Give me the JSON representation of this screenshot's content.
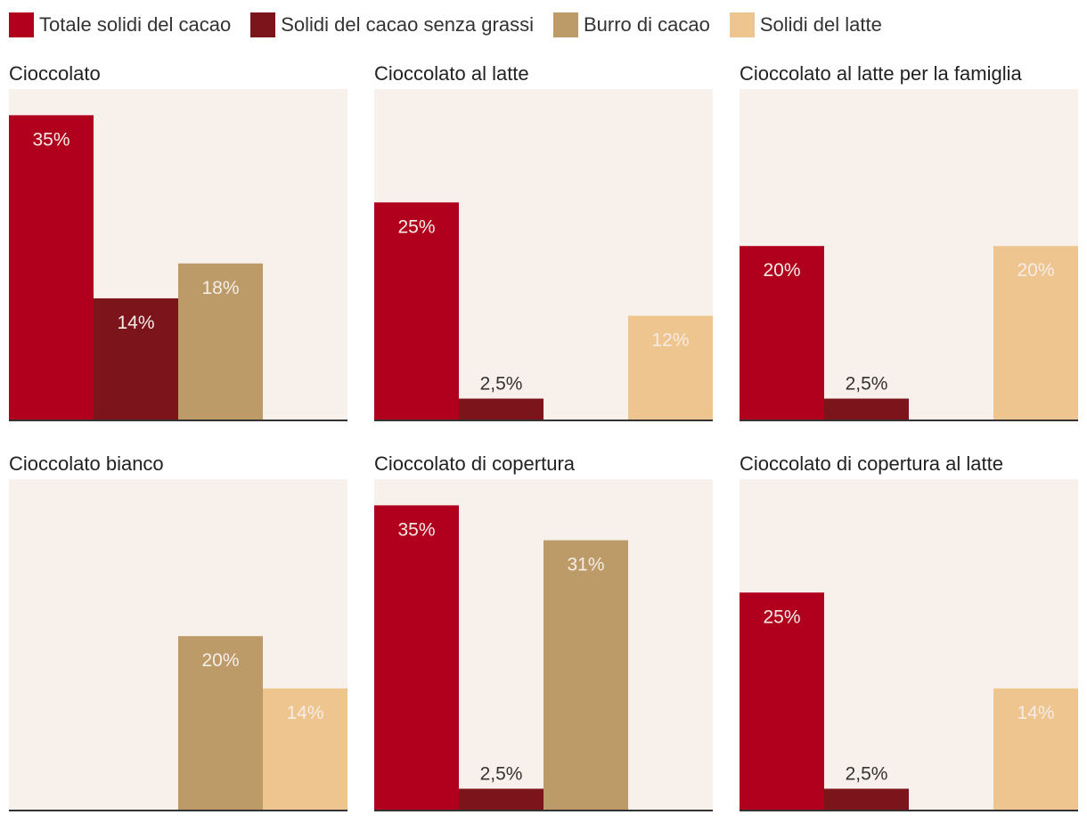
{
  "colors": {
    "background": "#f8f0ea",
    "axis": "#333333",
    "label_inside": "#f5ece6",
    "label_outside": "#333333"
  },
  "legend": [
    {
      "name": "Totale solidi del cacao",
      "color": "#b0001e"
    },
    {
      "name": "Solidi del cacao senza grassi",
      "color": "#7b141b"
    },
    {
      "name": "Burro di cacao",
      "color": "#bc9b69"
    },
    {
      "name": "Solidi del latte",
      "color": "#efc58f"
    }
  ],
  "chart_data": [
    {
      "type": "bar",
      "title": "Cioccolato",
      "categories": [
        "Totale solidi del cacao",
        "Solidi del cacao senza grassi",
        "Burro di cacao",
        "Solidi del latte"
      ],
      "values": [
        35,
        14,
        18,
        null
      ],
      "labels": [
        "35%",
        "14%",
        "18%",
        ""
      ],
      "ylim": [
        0,
        38
      ]
    },
    {
      "type": "bar",
      "title": "Cioccolato al latte",
      "categories": [
        "Totale solidi del cacao",
        "Solidi del cacao senza grassi",
        "Burro di cacao",
        "Solidi del latte"
      ],
      "values": [
        25,
        2.5,
        null,
        12
      ],
      "labels": [
        "25%",
        "2,5%",
        "",
        "12%"
      ],
      "ylim": [
        0,
        38
      ]
    },
    {
      "type": "bar",
      "title": "Cioccolato al latte per la famiglia",
      "categories": [
        "Totale solidi del cacao",
        "Solidi del cacao senza grassi",
        "Burro di cacao",
        "Solidi del latte"
      ],
      "values": [
        20,
        2.5,
        null,
        20
      ],
      "labels": [
        "20%",
        "2,5%",
        "",
        "20%"
      ],
      "ylim": [
        0,
        38
      ]
    },
    {
      "type": "bar",
      "title": "Cioccolato bianco",
      "categories": [
        "Totale solidi del cacao",
        "Solidi del cacao senza grassi",
        "Burro di cacao",
        "Solidi del latte"
      ],
      "values": [
        null,
        null,
        20,
        14
      ],
      "labels": [
        "",
        "",
        "20%",
        "14%"
      ],
      "ylim": [
        0,
        38
      ]
    },
    {
      "type": "bar",
      "title": "Cioccolato di copertura",
      "categories": [
        "Totale solidi del cacao",
        "Solidi del cacao senza grassi",
        "Burro di cacao",
        "Solidi del latte"
      ],
      "values": [
        35,
        2.5,
        31,
        null
      ],
      "labels": [
        "35%",
        "2,5%",
        "31%",
        ""
      ],
      "ylim": [
        0,
        38
      ]
    },
    {
      "type": "bar",
      "title": "Cioccolato di copertura al latte",
      "categories": [
        "Totale solidi del cacao",
        "Solidi del cacao senza grassi",
        "Burro di cacao",
        "Solidi del latte"
      ],
      "values": [
        25,
        2.5,
        null,
        14
      ],
      "labels": [
        "25%",
        "2,5%",
        "",
        "14%"
      ],
      "ylim": [
        0,
        38
      ]
    }
  ]
}
